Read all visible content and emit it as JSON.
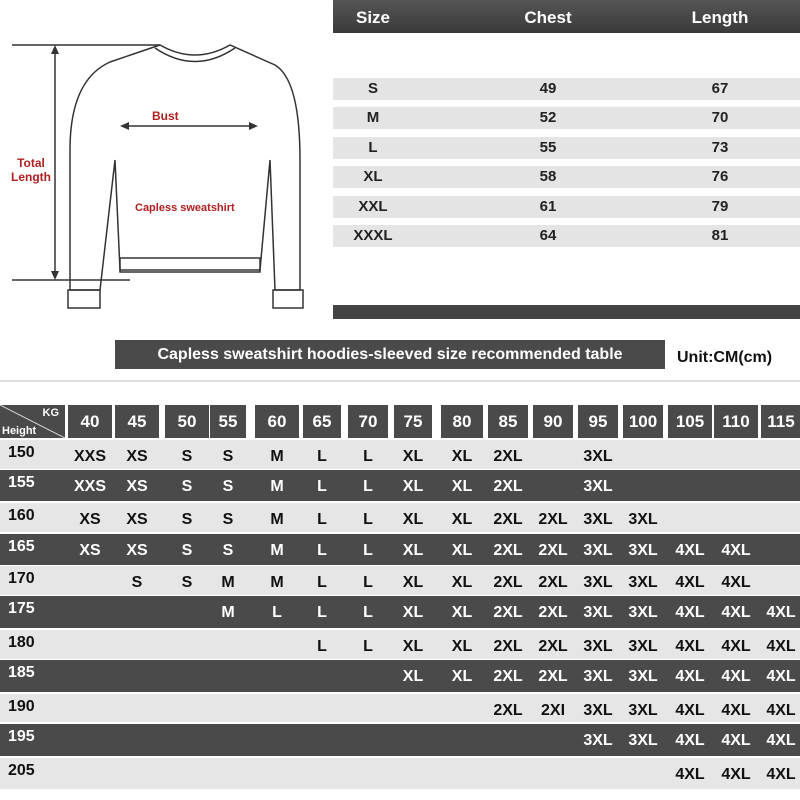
{
  "diagram": {
    "total_length": "Total Length",
    "bust": "Bust",
    "garment": "Capless sweatshirt"
  },
  "size_table": {
    "headers": [
      "Size",
      "Chest",
      "Length"
    ],
    "rows": [
      [
        "S",
        "49",
        "67"
      ],
      [
        "M",
        "52",
        "70"
      ],
      [
        "L",
        "55",
        "73"
      ],
      [
        "XL",
        "58",
        "76"
      ],
      [
        "XXL",
        "61",
        "79"
      ],
      [
        "XXXL",
        "64",
        "81"
      ]
    ]
  },
  "banner": "Capless sweatshirt hoodies-sleeved size recommended table",
  "unit": "Unit:CM(cm)",
  "grid": {
    "corner_kg": "KG",
    "corner_height": "Height",
    "weights": [
      "40",
      "45",
      "50",
      "55",
      "60",
      "65",
      "70",
      "75",
      "80",
      "85",
      "90",
      "95",
      "100",
      "105",
      "110",
      "115"
    ],
    "rows": [
      {
        "height": "150",
        "sizes": [
          "XXS",
          "XS",
          "S",
          "S",
          "M",
          "L",
          "L",
          "XL",
          "XL",
          "2XL",
          "",
          "3XL",
          "",
          "",
          "",
          ""
        ]
      },
      {
        "height": "155",
        "sizes": [
          "XXS",
          "XS",
          "S",
          "S",
          "M",
          "L",
          "L",
          "XL",
          "XL",
          "2XL",
          "",
          "3XL",
          "",
          "",
          "",
          ""
        ]
      },
      {
        "height": "160",
        "sizes": [
          "XS",
          "XS",
          "S",
          "S",
          "M",
          "L",
          "L",
          "XL",
          "XL",
          "2XL",
          "2XL",
          "3XL",
          "3XL",
          "",
          "",
          ""
        ]
      },
      {
        "height": "165",
        "sizes": [
          "XS",
          "XS",
          "S",
          "S",
          "M",
          "L",
          "L",
          "XL",
          "XL",
          "2XL",
          "2XL",
          "3XL",
          "3XL",
          "4XL",
          "4XL",
          ""
        ]
      },
      {
        "height": "170",
        "sizes": [
          "",
          "S",
          "S",
          "M",
          "M",
          "L",
          "L",
          "XL",
          "XL",
          "2XL",
          "2XL",
          "3XL",
          "3XL",
          "4XL",
          "4XL",
          ""
        ]
      },
      {
        "height": "175",
        "sizes": [
          "",
          "",
          "",
          "M",
          "L",
          "L",
          "L",
          "XL",
          "XL",
          "2XL",
          "2XL",
          "3XL",
          "3XL",
          "4XL",
          "4XL",
          "4XL"
        ]
      },
      {
        "height": "180",
        "sizes": [
          "",
          "",
          "",
          "",
          "",
          "L",
          "L",
          "XL",
          "XL",
          "2XL",
          "2XL",
          "3XL",
          "3XL",
          "4XL",
          "4XL",
          "4XL"
        ]
      },
      {
        "height": "185",
        "sizes": [
          "",
          "",
          "",
          "",
          "",
          "",
          "",
          "XL",
          "XL",
          "2XL",
          "2XL",
          "3XL",
          "3XL",
          "4XL",
          "4XL",
          "4XL"
        ]
      },
      {
        "height": "190",
        "sizes": [
          "",
          "",
          "",
          "",
          "",
          "",
          "",
          "",
          "",
          "2XL",
          "2XI",
          "3XL",
          "3XL",
          "4XL",
          "4XL",
          "4XL"
        ]
      },
      {
        "height": "195",
        "sizes": [
          "",
          "",
          "",
          "",
          "",
          "",
          "",
          "",
          "",
          "",
          "",
          "3XL",
          "3XL",
          "4XL",
          "4XL",
          "4XL"
        ]
      },
      {
        "height": "205",
        "sizes": [
          "",
          "",
          "",
          "",
          "",
          "",
          "",
          "",
          "",
          "",
          "",
          "",
          "",
          "4XL",
          "4XL",
          "4XL"
        ]
      }
    ]
  }
}
